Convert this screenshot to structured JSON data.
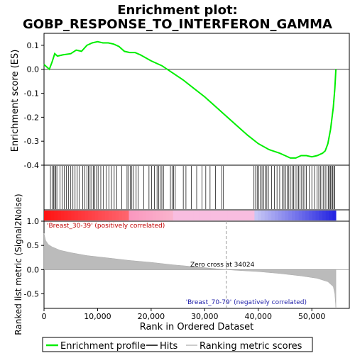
{
  "chart_data": {
    "type": "line",
    "title_line1": "Enrichment plot:",
    "title_line2": "GOBP_RESPONSE_TO_INTERFERON_GAMMA",
    "es_panel": {
      "ylabel": "Enrichment score (ES)",
      "ylim": [
        -0.4,
        0.15
      ],
      "yticks": [
        0.1,
        0.0,
        -0.1,
        -0.2,
        -0.3,
        -0.4
      ],
      "ytick_labels": [
        "0.1",
        "0.0",
        "-0.1",
        "-0.2",
        "-0.3",
        "-0.4"
      ],
      "color": "#00ee00",
      "x": [
        0,
        1000,
        1500,
        2000,
        2500,
        3500,
        5000,
        6000,
        7000,
        8000,
        9000,
        10000,
        11000,
        12000,
        13000,
        14000,
        15000,
        16000,
        17000,
        18000,
        20000,
        22000,
        24000,
        26000,
        28000,
        30000,
        32000,
        34000,
        36000,
        38000,
        40000,
        42000,
        44000,
        45000,
        46000,
        47000,
        48000,
        49000,
        50000,
        51000,
        52000,
        52500,
        53000,
        53500,
        54000,
        54300,
        54500
      ],
      "y": [
        0.02,
        0.0,
        0.03,
        0.065,
        0.055,
        0.06,
        0.065,
        0.08,
        0.075,
        0.1,
        0.11,
        0.115,
        0.11,
        0.11,
        0.105,
        0.095,
        0.075,
        0.07,
        0.07,
        0.06,
        0.035,
        0.015,
        -0.015,
        -0.045,
        -0.08,
        -0.115,
        -0.155,
        -0.195,
        -0.235,
        -0.275,
        -0.31,
        -0.335,
        -0.35,
        -0.36,
        -0.37,
        -0.37,
        -0.36,
        -0.36,
        -0.365,
        -0.36,
        -0.35,
        -0.34,
        -0.31,
        -0.25,
        -0.16,
        -0.08,
        0.0
      ]
    },
    "hits": {
      "positions": [
        1200,
        1500,
        1800,
        2000,
        2200,
        2400,
        3000,
        3400,
        3800,
        4200,
        4600,
        5000,
        5400,
        5800,
        6200,
        6600,
        7200,
        7600,
        8000,
        8300,
        8600,
        8900,
        9200,
        9500,
        9800,
        10100,
        10600,
        11100,
        11600,
        12100,
        12600,
        13100,
        13600,
        14500,
        15500,
        15800,
        16100,
        16400,
        16700,
        17200,
        17600,
        18600,
        19600,
        20100,
        20600,
        21100,
        21400,
        21700,
        22000,
        22300,
        23600,
        23900,
        24200,
        24500,
        26000,
        26500,
        27500,
        28500,
        29500,
        30200,
        31000,
        32000,
        33200,
        33500,
        39200,
        39500,
        39800,
        40100,
        40400,
        40700,
        41000,
        41300,
        41600,
        41900,
        42500,
        43000,
        43500,
        44000,
        44500,
        44800,
        45100,
        45400,
        45700,
        46000,
        46300,
        46600,
        46900,
        47200,
        47500,
        47800,
        48100,
        48400,
        48700,
        49000,
        49500,
        50000,
        50500,
        51000,
        51300,
        51600,
        51900,
        52200,
        52500,
        52800,
        53100,
        53300,
        53500,
        53700,
        53900,
        54100,
        54300
      ]
    },
    "ranked_panel": {
      "ylabel": "Ranked list metric (Signal2Noise)",
      "ylim": [
        -0.8,
        1.0
      ],
      "yticks": [
        1.0,
        0.5,
        0.0,
        -0.5
      ],
      "ytick_labels": [
        "1.0",
        "0.5",
        "0.0",
        "-0.5"
      ],
      "x": [
        0,
        300,
        800,
        1500,
        3000,
        5000,
        8000,
        12000,
        16000,
        20000,
        24000,
        28000,
        32000,
        34024,
        36000,
        40000,
        44000,
        48000,
        51000,
        53000,
        54000,
        54300,
        54500
      ],
      "y": [
        0.75,
        0.6,
        0.52,
        0.47,
        0.4,
        0.35,
        0.29,
        0.24,
        0.19,
        0.15,
        0.1,
        0.06,
        0.02,
        0.0,
        -0.015,
        -0.04,
        -0.08,
        -0.13,
        -0.18,
        -0.25,
        -0.35,
        -0.5,
        -0.8
      ],
      "pos_label": "'Breast_30-39' (positively correlated)",
      "neg_label": "'Breast_70-79' (negatively correlated)",
      "zero_cross_label": "Zero cross at 34024",
      "zero_cross": 34024
    },
    "xaxis": {
      "xlabel": "Rank in Ordered Dataset",
      "xlim": [
        0,
        57000
      ],
      "xticks": [
        0,
        10000,
        20000,
        30000,
        40000,
        50000
      ],
      "xtick_labels": [
        "0",
        "10,000",
        "20,000",
        "30,000",
        "40,000",
        "50,000"
      ]
    },
    "legend": {
      "placement": "bottom",
      "entries": [
        {
          "label": "Enrichment profile",
          "color": "#00ee00"
        },
        {
          "label": "Hits",
          "color": "#000000"
        },
        {
          "label": "Ranking metric scores",
          "color": "#bbbbbb"
        }
      ]
    }
  }
}
